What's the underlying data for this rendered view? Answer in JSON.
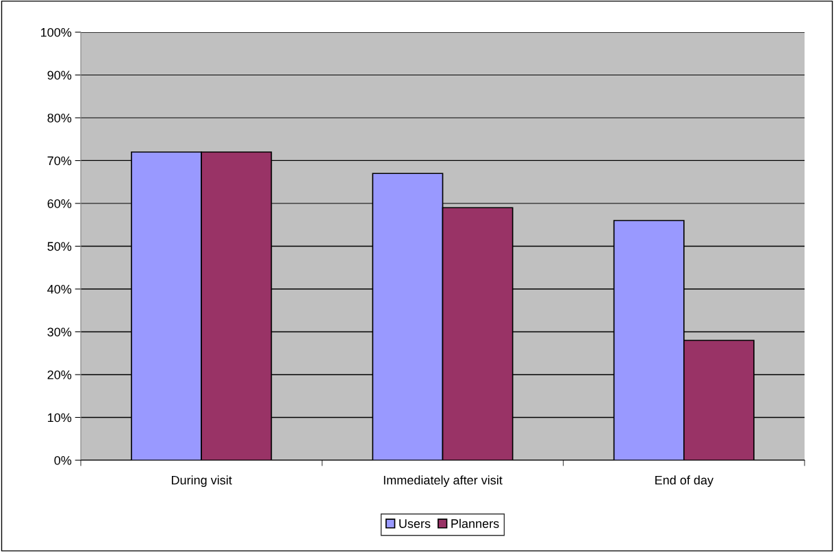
{
  "chart_data": {
    "type": "bar",
    "categories": [
      "During visit",
      "Immediately after visit",
      "End of day"
    ],
    "series": [
      {
        "name": "Users",
        "color": "#9999ff",
        "values": [
          72,
          67,
          56
        ]
      },
      {
        "name": "Planners",
        "color": "#993366",
        "values": [
          72,
          59,
          28
        ]
      }
    ],
    "ylim": [
      0,
      100
    ],
    "yticks": [
      {
        "value": 0,
        "label": "0%"
      },
      {
        "value": 10,
        "label": "10%"
      },
      {
        "value": 20,
        "label": "20%"
      },
      {
        "value": 30,
        "label": "30%"
      },
      {
        "value": 40,
        "label": "40%"
      },
      {
        "value": 50,
        "label": "50%"
      },
      {
        "value": 60,
        "label": "60%"
      },
      {
        "value": 70,
        "label": "70%"
      },
      {
        "value": 80,
        "label": "80%"
      },
      {
        "value": 90,
        "label": "90%"
      },
      {
        "value": 100,
        "label": "100%"
      }
    ],
    "grid": "y",
    "legend": "bottom"
  }
}
